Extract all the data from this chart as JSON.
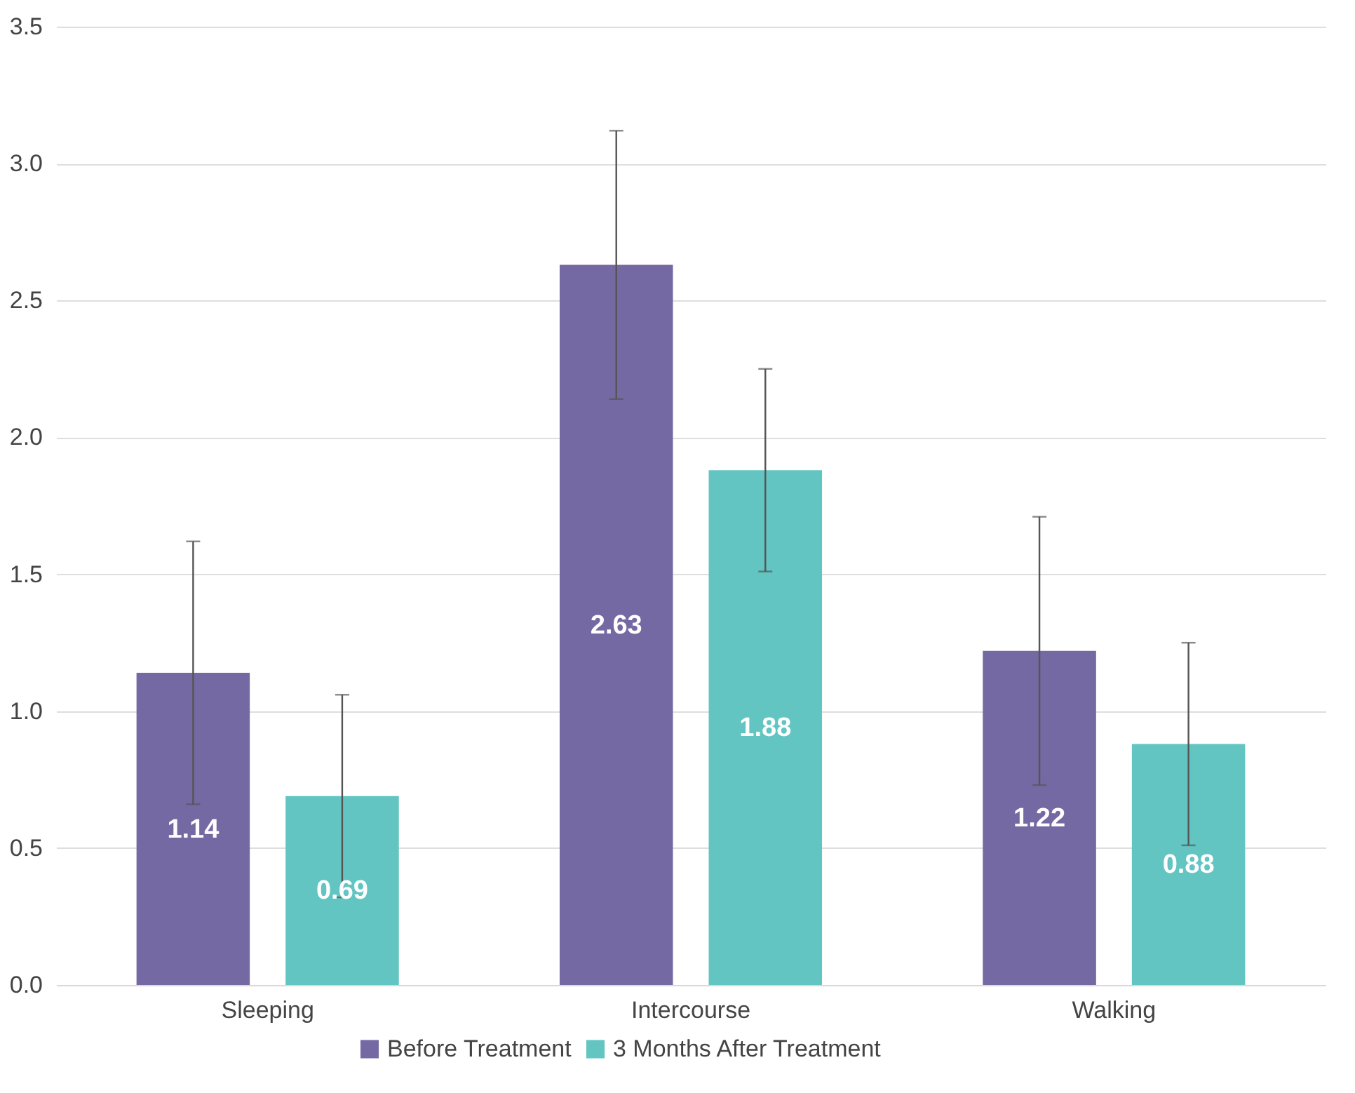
{
  "chart_data": {
    "type": "bar",
    "categories": [
      "Sleeping",
      "Intercourse",
      "Walking"
    ],
    "series": [
      {
        "name": "Before Treatment",
        "color": "#7569a3",
        "values": [
          1.14,
          2.63,
          1.22
        ],
        "errors": [
          0.48,
          0.49,
          0.49
        ]
      },
      {
        "name": "3 Months After Treatment",
        "color": "#62c5c2",
        "values": [
          0.69,
          1.88,
          0.88
        ],
        "errors": [
          0.37,
          0.37,
          0.37
        ]
      }
    ],
    "ylim": [
      0,
      3.5
    ],
    "yticks": [
      {
        "value": 0,
        "label": "0.0"
      },
      0.5,
      {
        "value": 1,
        "label": "1.0"
      },
      1.5,
      {
        "value": 2,
        "label": "2.0"
      },
      2.5,
      {
        "value": 3,
        "label": "3.0"
      },
      3.5
    ],
    "grid": "y",
    "legend": "bottom",
    "data_labels": true
  }
}
